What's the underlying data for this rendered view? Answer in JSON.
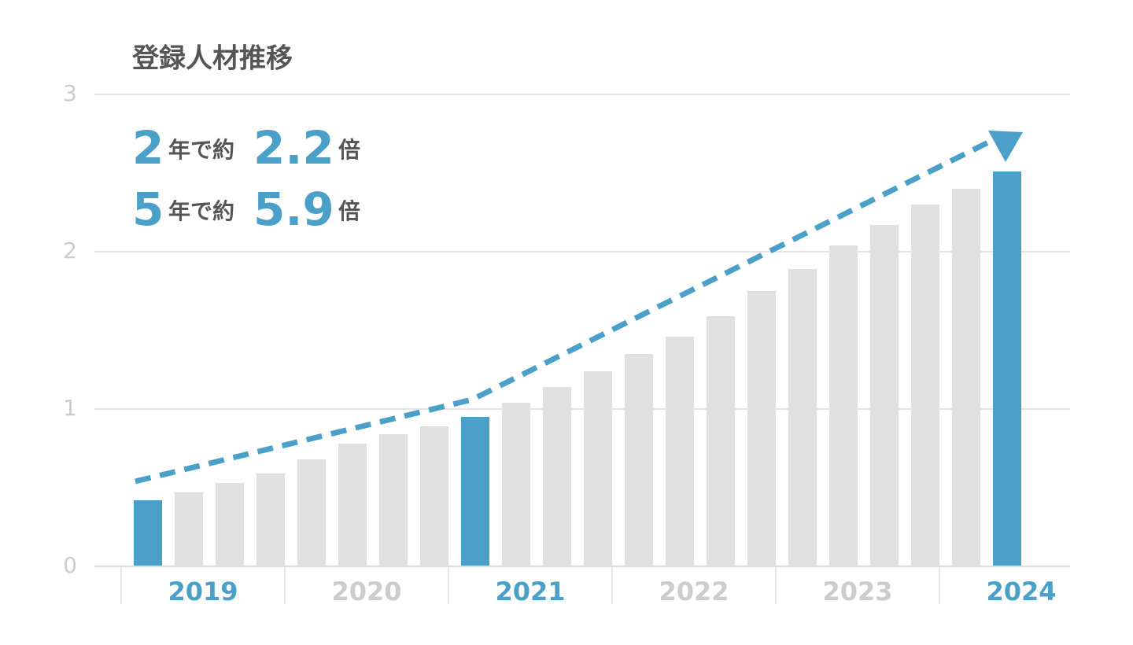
{
  "chart_data": {
    "type": "bar",
    "title": "登録人材推移",
    "annotations": [
      [
        "2",
        "年で約",
        "2.2",
        "倍"
      ],
      [
        "5",
        "年で約",
        "5.9",
        "倍"
      ]
    ],
    "values": [
      0.42,
      0.47,
      0.53,
      0.59,
      0.68,
      0.78,
      0.84,
      0.89,
      0.95,
      1.04,
      1.14,
      1.24,
      1.35,
      1.46,
      1.59,
      1.75,
      1.89,
      2.04,
      2.17,
      2.3,
      2.4,
      2.51
    ],
    "colors": [
      "#4aa0c9",
      "#e0e0e0",
      "#e0e0e0",
      "#e0e0e0",
      "#e0e0e0",
      "#e0e0e0",
      "#e0e0e0",
      "#e0e0e0",
      "#4aa0c9",
      "#e0e0e0",
      "#e0e0e0",
      "#e0e0e0",
      "#e0e0e0",
      "#e0e0e0",
      "#e0e0e0",
      "#e0e0e0",
      "#e0e0e0",
      "#e0e0e0",
      "#e0e0e0",
      "#e0e0e0",
      "#e0e0e0",
      "#4aa0c9"
    ],
    "groups": [
      {
        "label": "2019",
        "color": "#4aa0c9"
      },
      {
        "label": "2020",
        "color": "#cccccc"
      },
      {
        "label": "2021",
        "color": "#4aa0c9"
      },
      {
        "label": "2022",
        "color": "#cccccc"
      },
      {
        "label": "2023",
        "color": "#cccccc"
      },
      {
        "label": "2024",
        "color": "#4aa0c9"
      }
    ],
    "ylim": [
      0,
      3
    ],
    "yticks": [
      0,
      1,
      2,
      3
    ],
    "grid": true
  }
}
